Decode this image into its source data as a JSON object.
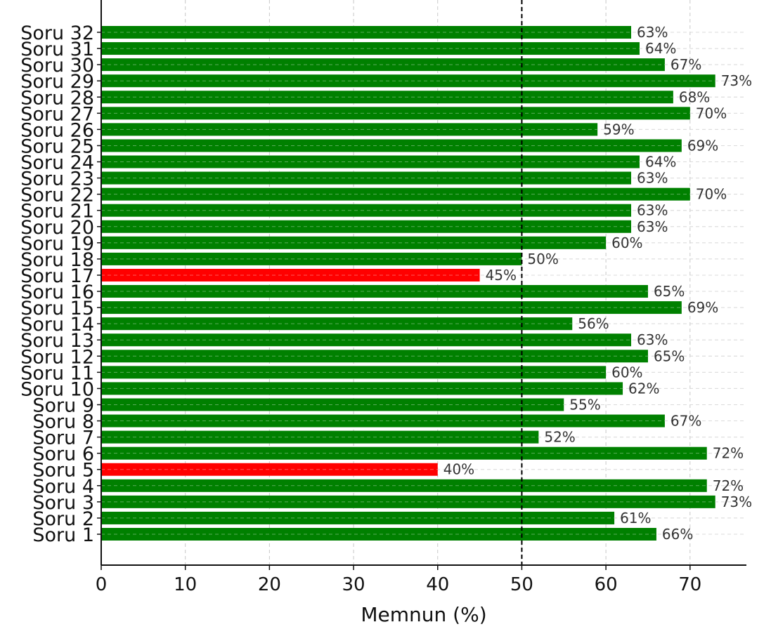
{
  "chart_data": {
    "type": "bar",
    "orientation": "horizontal",
    "xlabel": "Memnun (%)",
    "ylabel": "",
    "title": "",
    "xlim": [
      0,
      76.7
    ],
    "xticks": [
      0,
      10,
      20,
      30,
      40,
      50,
      60,
      70
    ],
    "grid": true,
    "grid_style": "dashed",
    "reference_line": {
      "value": 50,
      "style": "dashed",
      "color": "#000000"
    },
    "threshold": 50,
    "colors": {
      "above_threshold": "#008000",
      "below_threshold": "#ff0000"
    },
    "categories": [
      "Soru 1",
      "Soru 2",
      "Soru 3",
      "Soru 4",
      "Soru 5",
      "Soru 6",
      "Soru 7",
      "Soru 8",
      "Soru 9",
      "Soru 10",
      "Soru 11",
      "Soru 12",
      "Soru 13",
      "Soru 14",
      "Soru 15",
      "Soru 16",
      "Soru 17",
      "Soru 18",
      "Soru 19",
      "Soru 20",
      "Soru 21",
      "Soru 22",
      "Soru 23",
      "Soru 24",
      "Soru 25",
      "Soru 26",
      "Soru 27",
      "Soru 28",
      "Soru 29",
      "Soru 30",
      "Soru 31",
      "Soru 32"
    ],
    "values": [
      66,
      61,
      73,
      72,
      40,
      72,
      52,
      67,
      55,
      62,
      60,
      65,
      63,
      56,
      69,
      65,
      45,
      50,
      60,
      63,
      63,
      70,
      63,
      64,
      69,
      59,
      70,
      68,
      73,
      67,
      64,
      63
    ],
    "value_labels": [
      "66%",
      "61%",
      "73%",
      "72%",
      "40%",
      "72%",
      "52%",
      "67%",
      "55%",
      "62%",
      "60%",
      "65%",
      "63%",
      "56%",
      "69%",
      "65%",
      "45%",
      "50%",
      "60%",
      "63%",
      "63%",
      "70%",
      "63%",
      "64%",
      "69%",
      "59%",
      "70%",
      "68%",
      "73%",
      "67%",
      "64%",
      "63%"
    ]
  }
}
